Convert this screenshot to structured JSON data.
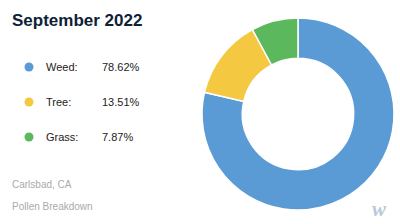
{
  "chart_data": {
    "type": "pie",
    "title": "September 2022",
    "categories": [
      "Weed:",
      "Tree:",
      "Grass:"
    ],
    "values": [
      78.62,
      13.51,
      7.87
    ],
    "value_labels": [
      "78.62%",
      "13.51%",
      "7.87%"
    ],
    "colors": [
      "#5b9bd5",
      "#f5c842",
      "#5cb85c"
    ],
    "legend": "left",
    "annotations": [
      "Carlsbad, CA",
      "Pollen Breakdown",
      "w"
    ]
  }
}
